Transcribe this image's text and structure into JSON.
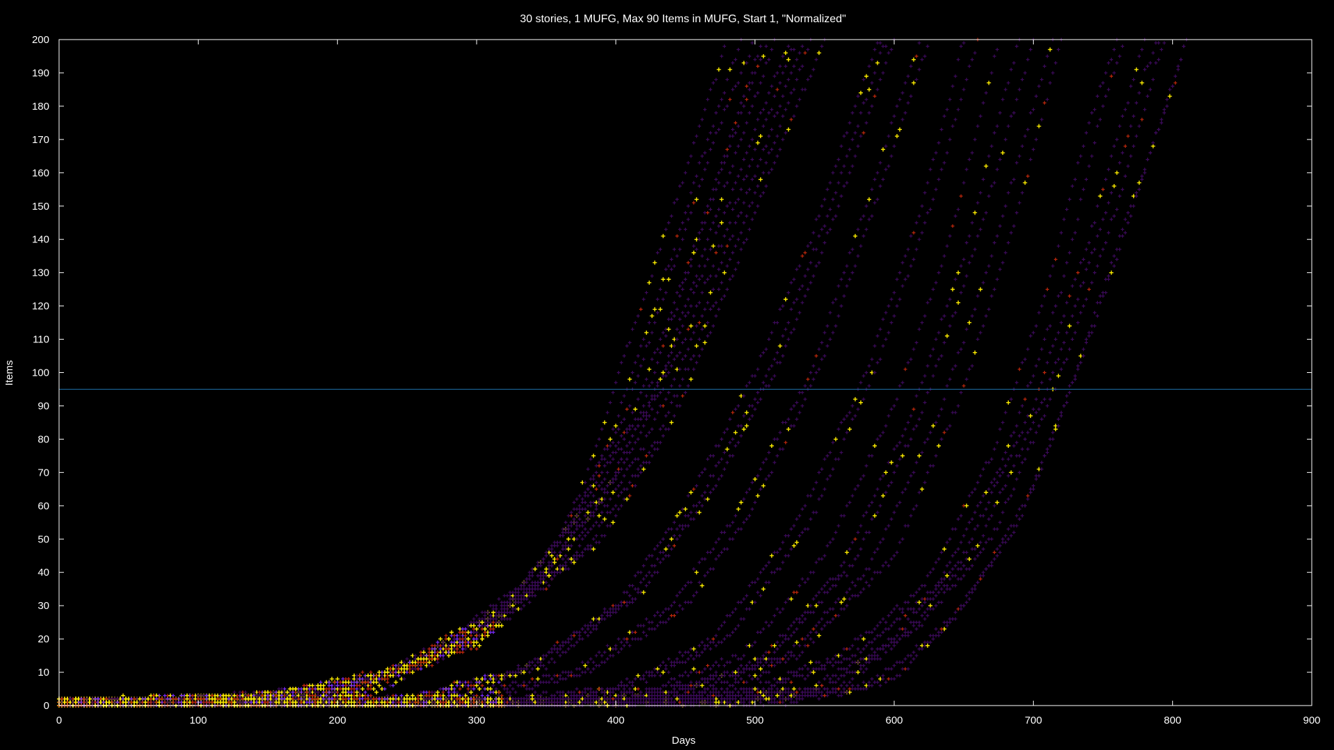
{
  "chart_data": {
    "type": "scatter",
    "title": "30 stories, 1 MUFG, Max 90 Items in MUFG, Start 1, \"Normalized\"",
    "xlabel": "Days",
    "ylabel": "Items",
    "xlim": [
      0,
      900
    ],
    "ylim": [
      0,
      200
    ],
    "x_ticks": [
      "0",
      "100",
      "200",
      "300",
      "400",
      "500",
      "600",
      "700",
      "800",
      "900"
    ],
    "y_ticks": [
      "0",
      "10",
      "20",
      "30",
      "40",
      "50",
      "60",
      "70",
      "80",
      "90",
      "100",
      "110",
      "120",
      "130",
      "140",
      "150",
      "160",
      "170",
      "180",
      "190",
      "200"
    ],
    "grid": false,
    "background": "#000000",
    "reference_line": {
      "y": 95,
      "color": "#1f6fa8"
    },
    "marker_colors": {
      "base": "#3d0a5c",
      "blue": "#7a2cff",
      "red": "#c0280c",
      "yellow": "#ffee00"
    },
    "series": [
      {
        "values": [
          [
            0,
            1
          ],
          [
            100,
            2
          ],
          [
            200,
            5
          ],
          [
            300,
            20
          ],
          [
            350,
            40
          ],
          [
            380,
            70
          ],
          [
            410,
            110
          ],
          [
            450,
            160
          ],
          [
            480,
            200
          ]
        ]
      },
      {
        "values": [
          [
            0,
            1
          ],
          [
            100,
            1
          ],
          [
            200,
            4
          ],
          [
            300,
            18
          ],
          [
            360,
            45
          ],
          [
            400,
            85
          ],
          [
            440,
            135
          ],
          [
            470,
            175
          ],
          [
            490,
            200
          ]
        ]
      },
      {
        "values": [
          [
            0,
            1
          ],
          [
            100,
            2
          ],
          [
            220,
            6
          ],
          [
            310,
            25
          ],
          [
            360,
            50
          ],
          [
            405,
            85
          ],
          [
            440,
            130
          ],
          [
            475,
            175
          ],
          [
            500,
            200
          ]
        ]
      },
      {
        "values": [
          [
            0,
            1
          ],
          [
            120,
            2
          ],
          [
            230,
            8
          ],
          [
            320,
            30
          ],
          [
            370,
            55
          ],
          [
            410,
            85
          ],
          [
            450,
            130
          ],
          [
            490,
            180
          ],
          [
            505,
            200
          ]
        ]
      },
      {
        "values": [
          [
            0,
            1
          ],
          [
            150,
            3
          ],
          [
            250,
            12
          ],
          [
            330,
            35
          ],
          [
            380,
            60
          ],
          [
            420,
            90
          ],
          [
            460,
            140
          ],
          [
            500,
            190
          ],
          [
            510,
            200
          ]
        ]
      },
      {
        "values": [
          [
            0,
            1
          ],
          [
            150,
            2
          ],
          [
            260,
            12
          ],
          [
            340,
            35
          ],
          [
            390,
            62
          ],
          [
            430,
            95
          ],
          [
            470,
            145
          ],
          [
            510,
            195
          ],
          [
            515,
            200
          ]
        ]
      },
      {
        "values": [
          [
            0,
            1
          ],
          [
            180,
            3
          ],
          [
            270,
            15
          ],
          [
            350,
            40
          ],
          [
            400,
            70
          ],
          [
            440,
            105
          ],
          [
            480,
            150
          ],
          [
            520,
            195
          ],
          [
            525,
            200
          ]
        ]
      },
      {
        "values": [
          [
            0,
            1
          ],
          [
            180,
            2
          ],
          [
            280,
            16
          ],
          [
            360,
            42
          ],
          [
            410,
            75
          ],
          [
            450,
            110
          ],
          [
            490,
            155
          ],
          [
            525,
            195
          ],
          [
            530,
            200
          ]
        ]
      },
      {
        "values": [
          [
            0,
            1
          ],
          [
            200,
            3
          ],
          [
            290,
            18
          ],
          [
            370,
            45
          ],
          [
            420,
            78
          ],
          [
            460,
            115
          ],
          [
            500,
            160
          ],
          [
            535,
            200
          ]
        ]
      },
      {
        "values": [
          [
            0,
            1
          ],
          [
            200,
            2
          ],
          [
            300,
            20
          ],
          [
            380,
            48
          ],
          [
            430,
            80
          ],
          [
            470,
            120
          ],
          [
            510,
            165
          ],
          [
            540,
            200
          ]
        ]
      },
      {
        "values": [
          [
            0,
            1
          ],
          [
            220,
            3
          ],
          [
            310,
            22
          ],
          [
            390,
            50
          ],
          [
            440,
            85
          ],
          [
            480,
            125
          ],
          [
            520,
            170
          ],
          [
            550,
            200
          ]
        ]
      },
      {
        "values": [
          [
            0,
            1
          ],
          [
            250,
            2
          ],
          [
            330,
            10
          ],
          [
            400,
            30
          ],
          [
            450,
            60
          ],
          [
            500,
            100
          ],
          [
            540,
            140
          ],
          [
            580,
            190
          ],
          [
            590,
            200
          ]
        ]
      },
      {
        "values": [
          [
            0,
            1
          ],
          [
            250,
            2
          ],
          [
            340,
            12
          ],
          [
            410,
            32
          ],
          [
            460,
            62
          ],
          [
            510,
            100
          ],
          [
            550,
            145
          ],
          [
            590,
            195
          ],
          [
            595,
            200
          ]
        ]
      },
      {
        "values": [
          [
            0,
            1
          ],
          [
            260,
            2
          ],
          [
            350,
            12
          ],
          [
            420,
            35
          ],
          [
            470,
            65
          ],
          [
            520,
            105
          ],
          [
            560,
            150
          ],
          [
            600,
            200
          ]
        ]
      },
      {
        "values": [
          [
            0,
            1
          ],
          [
            280,
            2
          ],
          [
            370,
            10
          ],
          [
            440,
            30
          ],
          [
            490,
            60
          ],
          [
            540,
            100
          ],
          [
            580,
            150
          ],
          [
            610,
            190
          ],
          [
            620,
            200
          ]
        ]
      },
      {
        "values": [
          [
            0,
            1
          ],
          [
            300,
            2
          ],
          [
            380,
            10
          ],
          [
            450,
            30
          ],
          [
            500,
            60
          ],
          [
            550,
            105
          ],
          [
            590,
            155
          ],
          [
            625,
            200
          ]
        ]
      },
      {
        "values": [
          [
            0,
            1
          ],
          [
            300,
            1
          ],
          [
            400,
            5
          ],
          [
            470,
            20
          ],
          [
            530,
            55
          ],
          [
            580,
            100
          ],
          [
            620,
            150
          ],
          [
            650,
            200
          ]
        ]
      },
      {
        "values": [
          [
            0,
            1
          ],
          [
            320,
            1
          ],
          [
            410,
            5
          ],
          [
            480,
            20
          ],
          [
            540,
            55
          ],
          [
            590,
            105
          ],
          [
            630,
            155
          ],
          [
            660,
            200
          ]
        ]
      },
      {
        "values": [
          [
            0,
            1
          ],
          [
            330,
            1
          ],
          [
            420,
            4
          ],
          [
            490,
            15
          ],
          [
            550,
            45
          ],
          [
            600,
            90
          ],
          [
            640,
            140
          ],
          [
            670,
            190
          ],
          [
            675,
            200
          ]
        ]
      },
      {
        "values": [
          [
            0,
            1
          ],
          [
            350,
            1
          ],
          [
            430,
            4
          ],
          [
            500,
            12
          ],
          [
            560,
            40
          ],
          [
            610,
            85
          ],
          [
            650,
            135
          ],
          [
            680,
            185
          ],
          [
            690,
            200
          ]
        ]
      },
      {
        "values": [
          [
            0,
            1
          ],
          [
            360,
            1
          ],
          [
            440,
            4
          ],
          [
            510,
            14
          ],
          [
            570,
            42
          ],
          [
            620,
            88
          ],
          [
            660,
            140
          ],
          [
            700,
            200
          ]
        ]
      },
      {
        "values": [
          [
            0,
            1
          ],
          [
            380,
            1
          ],
          [
            460,
            5
          ],
          [
            520,
            14
          ],
          [
            580,
            40
          ],
          [
            630,
            85
          ],
          [
            670,
            135
          ],
          [
            710,
            195
          ],
          [
            715,
            200
          ]
        ]
      },
      {
        "values": [
          [
            0,
            1
          ],
          [
            400,
            1
          ],
          [
            480,
            5
          ],
          [
            530,
            15
          ],
          [
            600,
            45
          ],
          [
            650,
            95
          ],
          [
            690,
            150
          ],
          [
            720,
            200
          ]
        ]
      },
      {
        "values": [
          [
            0,
            1
          ],
          [
            420,
            1
          ],
          [
            500,
            5
          ],
          [
            560,
            15
          ],
          [
            620,
            35
          ],
          [
            670,
            75
          ],
          [
            710,
            125
          ],
          [
            740,
            175
          ],
          [
            760,
            200
          ]
        ]
      },
      {
        "values": [
          [
            0,
            1
          ],
          [
            430,
            1
          ],
          [
            510,
            5
          ],
          [
            570,
            15
          ],
          [
            630,
            35
          ],
          [
            680,
            75
          ],
          [
            720,
            125
          ],
          [
            750,
            180
          ],
          [
            765,
            200
          ]
        ]
      },
      {
        "values": [
          [
            0,
            1
          ],
          [
            450,
            1
          ],
          [
            540,
            5
          ],
          [
            600,
            20
          ],
          [
            650,
            45
          ],
          [
            700,
            90
          ],
          [
            740,
            140
          ],
          [
            770,
            185
          ],
          [
            780,
            200
          ]
        ]
      },
      {
        "values": [
          [
            0,
            1
          ],
          [
            470,
            1
          ],
          [
            550,
            5
          ],
          [
            610,
            22
          ],
          [
            660,
            48
          ],
          [
            710,
            95
          ],
          [
            750,
            145
          ],
          [
            780,
            190
          ],
          [
            790,
            200
          ]
        ]
      },
      {
        "values": [
          [
            0,
            1
          ],
          [
            480,
            1
          ],
          [
            560,
            5
          ],
          [
            620,
            25
          ],
          [
            670,
            50
          ],
          [
            720,
            100
          ],
          [
            760,
            150
          ],
          [
            790,
            195
          ],
          [
            795,
            200
          ]
        ]
      },
      {
        "values": [
          [
            0,
            1
          ],
          [
            500,
            1
          ],
          [
            580,
            5
          ],
          [
            640,
            25
          ],
          [
            690,
            55
          ],
          [
            730,
            100
          ],
          [
            770,
            150
          ],
          [
            800,
            185
          ],
          [
            810,
            200
          ]
        ]
      },
      {
        "values": [
          [
            0,
            1
          ],
          [
            520,
            1
          ],
          [
            600,
            8
          ],
          [
            650,
            30
          ],
          [
            700,
            65
          ],
          [
            740,
            110
          ],
          [
            780,
            160
          ],
          [
            810,
            200
          ]
        ]
      }
    ]
  }
}
